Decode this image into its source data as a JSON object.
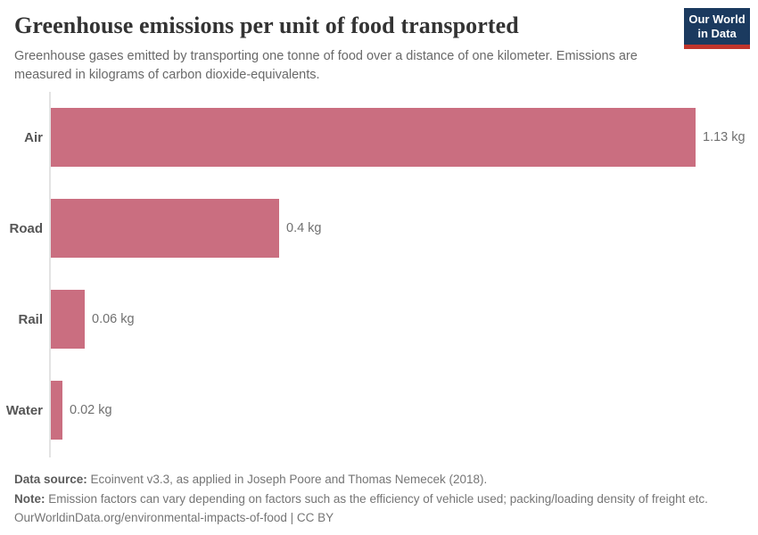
{
  "header": {
    "title": "Greenhouse emissions per unit of food transported",
    "subtitle": "Greenhouse gases emitted by transporting one tonne of food over a distance of one kilometer. Emissions are\nmeasured in kilograms of carbon dioxide-equivalents.",
    "logo": {
      "line1": "Our World",
      "line2": "in Data",
      "background_color": "#1b3a5f",
      "accent_color": "#c0352c"
    }
  },
  "chart_data": {
    "type": "bar",
    "orientation": "horizontal",
    "title": "Greenhouse emissions per unit of food transported",
    "categories": [
      "Air",
      "Road",
      "Rail",
      "Water"
    ],
    "values": [
      1.13,
      0.4,
      0.06,
      0.02
    ],
    "value_labels": [
      "1.13 kg",
      "0.4 kg",
      "0.06 kg",
      "0.02 kg"
    ],
    "unit": "kg",
    "xlabel": "",
    "ylabel": "",
    "xlim": [
      0,
      1.13
    ],
    "grid": false,
    "legend": false,
    "bar_color": "#ca6e80",
    "axis_line_color": "#e3e3e3"
  },
  "footer": {
    "datasource_label": "Data source:",
    "datasource_text": " Ecoinvent v3.3, as applied in Joseph Poore and Thomas Nemecek (2018).",
    "note_label": "Note:",
    "note_text": " Emission factors can vary depending on factors such as the efficiency of vehicle used; packing/loading density of freight etc.",
    "url": "OurWorldinData.org/environmental-impacts-of-food",
    "license": " | CC BY"
  }
}
